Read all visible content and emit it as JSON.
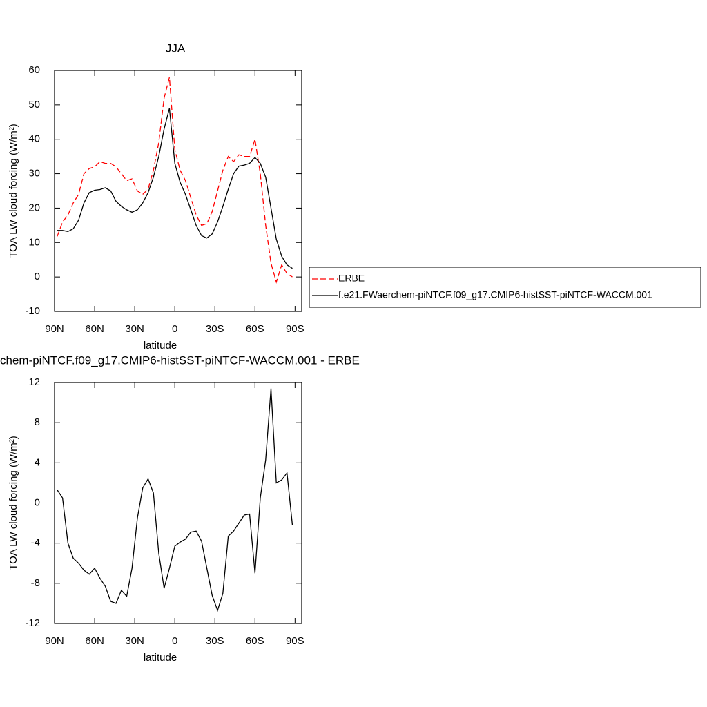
{
  "chart_data": [
    {
      "type": "line",
      "title": "JJA",
      "xlabel": "latitude",
      "ylabel": "TOA LW cloud forcing (W/m²)",
      "x": [
        88,
        84,
        80,
        76,
        72,
        68,
        64,
        60,
        56,
        52,
        48,
        44,
        40,
        36,
        32,
        28,
        24,
        20,
        16,
        12,
        8,
        4,
        0,
        -4,
        -8,
        -12,
        -16,
        -20,
        -24,
        -28,
        -32,
        -36,
        -40,
        -44,
        -48,
        -52,
        -56,
        -60,
        -64,
        -68,
        -72,
        -76,
        -80,
        -84,
        -88
      ],
      "series": [
        {
          "name": "ERBE",
          "color": "#ff0000",
          "dash": true,
          "values": [
            11.8,
            16,
            18,
            21.5,
            24,
            30,
            31.5,
            32,
            33.5,
            33,
            33,
            32,
            30,
            28,
            28.5,
            25,
            24,
            25.5,
            31,
            39,
            52,
            58,
            37,
            31,
            28,
            23,
            18,
            15,
            15.5,
            19,
            25,
            31,
            35,
            33.5,
            35.5,
            35,
            35,
            40,
            30,
            15,
            4,
            -1.5,
            3.5,
            1,
            0
          ]
        },
        {
          "name": "f.e21.FWaerchem-piNTCF.f09_g17.CMIP6-histSST-piNTCF-WACCM.001",
          "color": "#000000",
          "dash": false,
          "values": [
            13.5,
            13.5,
            13.2,
            14,
            16.5,
            21.5,
            24.5,
            25.2,
            25.4,
            25.9,
            25,
            22,
            20.5,
            19.5,
            18.8,
            19.5,
            21.5,
            24.5,
            29,
            35,
            43,
            49,
            33,
            27.5,
            24,
            19.5,
            15,
            12,
            11.3,
            12.5,
            16,
            20.5,
            25.5,
            30,
            32.2,
            32.5,
            33,
            34.7,
            33,
            29,
            20,
            11,
            6,
            3.5,
            2.5
          ]
        }
      ],
      "xlim": [
        90,
        -95
      ],
      "xticks": [
        {
          "value": 90,
          "label": "90N"
        },
        {
          "value": 60,
          "label": "60N"
        },
        {
          "value": 30,
          "label": "30N"
        },
        0,
        {
          "value": -30,
          "label": "30S"
        },
        {
          "value": -60,
          "label": "60S"
        },
        {
          "value": -90,
          "label": "90S"
        }
      ],
      "ylim": [
        -10,
        60
      ],
      "yticks": [
        -10,
        0,
        10,
        20,
        30,
        40,
        50,
        60
      ],
      "legend": "right"
    },
    {
      "type": "line",
      "title": "chem-piNTCF.f09_g17.CMIP6-histSST-piNTCF-WACCM.001 - ERBE",
      "xlabel": "latitude",
      "ylabel": "TOA LW cloud forcing (W/m²)",
      "x": [
        88,
        84,
        80,
        76,
        72,
        68,
        64,
        60,
        56,
        52,
        48,
        44,
        40,
        36,
        32,
        28,
        24,
        20,
        16,
        12,
        8,
        4,
        0,
        -4,
        -8,
        -12,
        -16,
        -20,
        -24,
        -28,
        -32,
        -36,
        -40,
        -44,
        -48,
        -52,
        -56,
        -60,
        -64,
        -68,
        -72,
        -76,
        -80,
        -84,
        -88
      ],
      "color": "#000000",
      "values": [
        1.3,
        0.5,
        -4,
        -5.5,
        -6,
        -6.7,
        -7.1,
        -6.5,
        -7.5,
        -8.3,
        -9.8,
        -10,
        -8.7,
        -9.3,
        -6.5,
        -1.5,
        1.5,
        2.4,
        1,
        -5,
        -8.5,
        -6.5,
        -4.3,
        -3.9,
        -3.6,
        -2.9,
        -2.8,
        -3.8,
        -6.5,
        -9.2,
        -10.7,
        -9,
        -3.3,
        -2.8,
        -2,
        -1.2,
        -1.1,
        -7,
        0.5,
        4.3,
        11.4,
        2,
        2.3,
        3,
        -2.2
      ],
      "xlim": [
        90,
        -95
      ],
      "xticks": [
        {
          "value": 90,
          "label": "90N"
        },
        {
          "value": 60,
          "label": "60N"
        },
        {
          "value": 30,
          "label": "30N"
        },
        0,
        {
          "value": -30,
          "label": "30S"
        },
        {
          "value": -60,
          "label": "60S"
        },
        {
          "value": -90,
          "label": "90S"
        }
      ],
      "ylim": [
        -12,
        12
      ],
      "yticks": [
        -12,
        -8,
        -4,
        0,
        4,
        8,
        12
      ]
    }
  ]
}
